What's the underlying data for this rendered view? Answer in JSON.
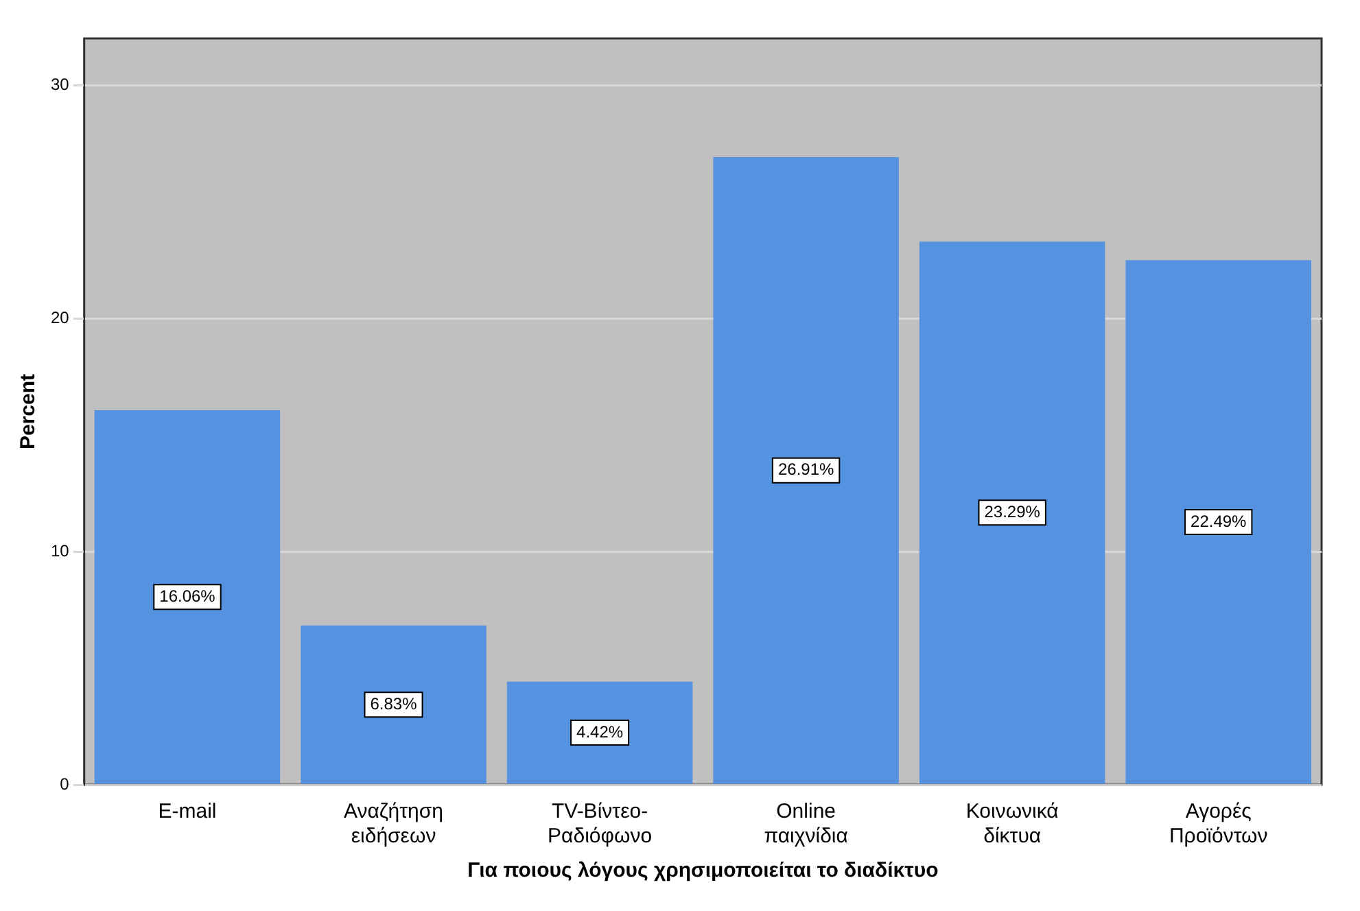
{
  "chart_data": {
    "type": "bar",
    "xlabel": "Για ποιους λόγους χρησιμοποιείται το διαδίκτυο",
    "ylabel": "Percent",
    "categories": [
      "E-mail",
      "Αναζήτηση\nειδήσεων",
      "TV-Βίντεο-\nΡαδιόφωνο",
      "Online\nπαιχνίδια",
      "Κοινωνικά\nδίκτυα",
      "Αγορές\nΠροϊόντων"
    ],
    "values": [
      16.06,
      6.83,
      4.42,
      26.91,
      23.29,
      22.49
    ],
    "value_labels": [
      "16.06%",
      "6.83%",
      "4.42%",
      "26.91%",
      "23.29%",
      "22.49%"
    ],
    "color": "#5592e0",
    "ylim": [
      0,
      32
    ],
    "yticks": [
      0,
      10,
      20,
      30
    ],
    "grid": "y",
    "legend": false
  }
}
